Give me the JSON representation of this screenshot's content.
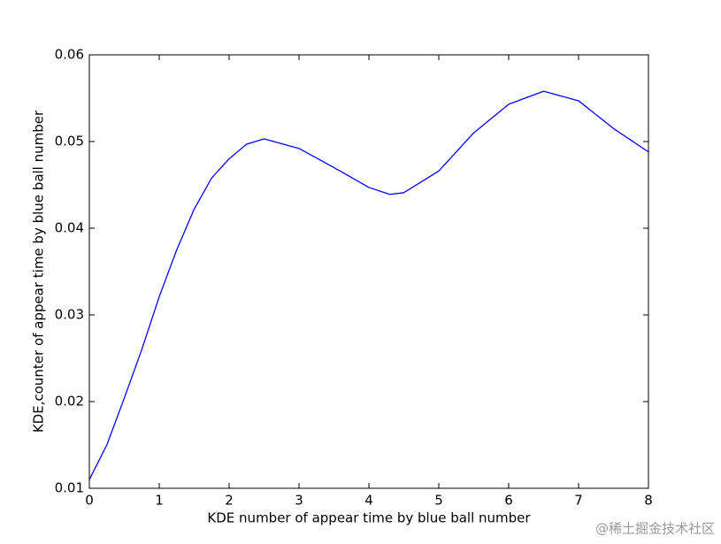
{
  "chart_data": {
    "type": "line",
    "x_label": "KDE number of appear time by blue ball number",
    "y_label": "KDE,counter of appear time by blue ball number",
    "x": [
      0,
      0.25,
      0.5,
      0.75,
      1,
      1.25,
      1.5,
      1.75,
      2,
      2.25,
      2.5,
      3,
      3.5,
      4,
      4.3,
      4.5,
      5,
      5.5,
      6,
      6.5,
      7,
      7.5,
      8
    ],
    "values": [
      0.011,
      0.015,
      0.0204,
      0.026,
      0.0321,
      0.0375,
      0.0422,
      0.0458,
      0.048,
      0.0497,
      0.0503,
      0.0492,
      0.047,
      0.0447,
      0.0439,
      0.0441,
      0.0466,
      0.051,
      0.0543,
      0.0558,
      0.0547,
      0.0515,
      0.0488
    ],
    "color": "#0000ff",
    "xlim": [
      0,
      8
    ],
    "ylim": [
      0.01,
      0.06
    ],
    "xticks": [
      0,
      1,
      2,
      3,
      4,
      5,
      6,
      7,
      8
    ],
    "yticks": [
      0.01,
      0.02,
      0.03,
      0.04,
      0.05,
      0.06
    ],
    "grid": false
  },
  "watermark": "@稀土掘金技术社区"
}
